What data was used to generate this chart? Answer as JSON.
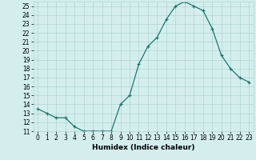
{
  "x": [
    0,
    1,
    2,
    3,
    4,
    5,
    6,
    7,
    8,
    9,
    10,
    11,
    12,
    13,
    14,
    15,
    16,
    17,
    18,
    19,
    20,
    21,
    22,
    23
  ],
  "y": [
    13.5,
    13.0,
    12.5,
    12.5,
    11.5,
    11.0,
    11.0,
    11.0,
    11.0,
    14.0,
    15.0,
    18.5,
    20.5,
    21.5,
    23.5,
    25.0,
    25.5,
    25.0,
    24.5,
    22.5,
    19.5,
    18.0,
    17.0,
    16.5
  ],
  "line_color": "#1a7a6e",
  "marker": "+",
  "marker_size": 3,
  "linewidth": 0.9,
  "xlabel": "Humidex (Indice chaleur)",
  "xlim": [
    -0.5,
    23.5
  ],
  "ylim": [
    11,
    25.5
  ],
  "yticks": [
    11,
    12,
    13,
    14,
    15,
    16,
    17,
    18,
    19,
    20,
    21,
    22,
    23,
    24,
    25
  ],
  "xticks": [
    0,
    1,
    2,
    3,
    4,
    5,
    6,
    7,
    8,
    9,
    10,
    11,
    12,
    13,
    14,
    15,
    16,
    17,
    18,
    19,
    20,
    21,
    22,
    23
  ],
  "xtick_labels": [
    "0",
    "1",
    "2",
    "3",
    "4",
    "5",
    "6",
    "7",
    "8",
    "9",
    "10",
    "11",
    "12",
    "13",
    "14",
    "15",
    "16",
    "17",
    "18",
    "19",
    "20",
    "21",
    "22",
    "23"
  ],
  "bg_color": "#d4eeee",
  "grid_color": "#b0d4d4",
  "xlabel_fontsize": 6.5,
  "tick_fontsize": 5.5
}
